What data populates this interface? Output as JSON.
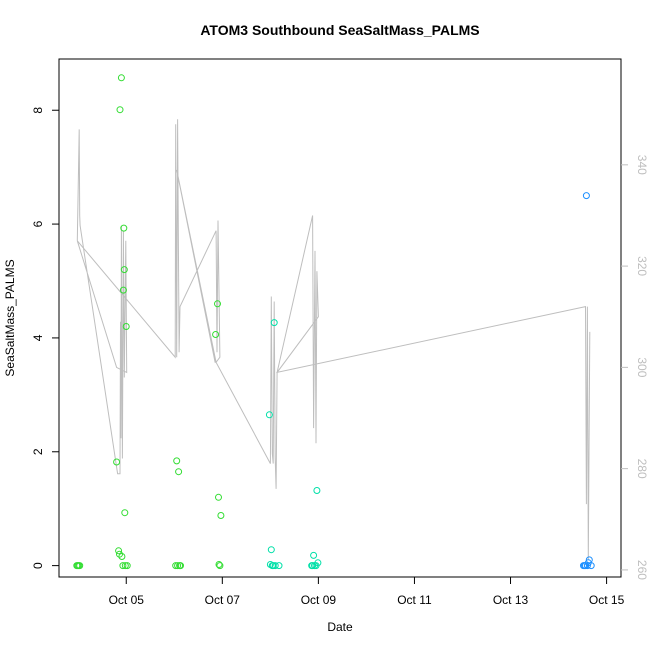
{
  "chart_data": {
    "type": "scatter",
    "title": "ATOM3 Southbound SeaSaltMass_PALMS",
    "xlabel": "Date",
    "ylabel": "SeaSaltMass_PALMS",
    "x_ticks": [
      "Oct 05",
      "Oct 07",
      "Oct 09",
      "Oct 11",
      "Oct 13",
      "Oct 15"
    ],
    "x_tick_values": [
      5,
      7,
      9,
      11,
      13,
      15
    ],
    "xlim": [
      3.6,
      15.3
    ],
    "ylim": [
      -0.2,
      8.9
    ],
    "y_ticks": [
      "0",
      "2",
      "4",
      "6",
      "8"
    ],
    "y_tick_values": [
      0,
      2,
      4,
      6,
      8
    ],
    "right_axis": {
      "ticks": [
        "260",
        "280",
        "300",
        "320",
        "340"
      ],
      "tick_values": [
        260,
        280,
        300,
        320,
        340
      ],
      "ylim": [
        258.6,
        360.9
      ],
      "color": "#bebebe"
    },
    "grid": false,
    "legend": "none",
    "colors": {
      "line": "#bebebe",
      "early": "#33dd33",
      "mid": "#00e0a8",
      "late": "#1e90ff"
    },
    "scatter_series": {
      "name": "SeaSaltMass_PALMS",
      "points": [
        [
          3.97,
          0.0
        ],
        [
          3.99,
          0.0
        ],
        [
          4.01,
          0.0
        ],
        [
          4.03,
          0.0
        ],
        [
          4.8,
          1.82
        ],
        [
          4.84,
          0.26
        ],
        [
          4.86,
          0.2
        ],
        [
          4.87,
          8.01
        ],
        [
          4.9,
          8.57
        ],
        [
          4.91,
          0.16
        ],
        [
          4.93,
          0.0
        ],
        [
          4.94,
          4.84
        ],
        [
          4.95,
          5.93
        ],
        [
          4.96,
          5.2
        ],
        [
          4.97,
          0.93
        ],
        [
          4.98,
          0.0
        ],
        [
          5.0,
          4.2
        ],
        [
          5.02,
          0.0
        ],
        [
          6.03,
          0.0
        ],
        [
          6.05,
          1.84
        ],
        [
          6.07,
          0.0
        ],
        [
          6.09,
          1.65
        ],
        [
          6.11,
          0.0
        ],
        [
          6.13,
          0.0
        ],
        [
          6.86,
          4.06
        ],
        [
          6.9,
          4.6
        ],
        [
          6.92,
          1.2
        ],
        [
          6.93,
          0.02
        ],
        [
          6.95,
          0.0
        ],
        [
          6.97,
          0.88
        ],
        [
          7.98,
          2.65
        ],
        [
          8.0,
          0.02
        ],
        [
          8.02,
          0.28
        ],
        [
          8.04,
          0.0
        ],
        [
          8.06,
          0.0
        ],
        [
          8.08,
          4.27
        ],
        [
          8.1,
          0.0
        ],
        [
          8.18,
          0.0
        ],
        [
          8.86,
          0.0
        ],
        [
          8.88,
          0.0
        ],
        [
          8.9,
          0.18
        ],
        [
          8.92,
          0.0
        ],
        [
          8.95,
          0.0
        ],
        [
          8.97,
          1.32
        ],
        [
          8.99,
          0.05
        ],
        [
          14.52,
          0.0
        ],
        [
          14.54,
          0.0
        ],
        [
          14.56,
          0.0
        ],
        [
          14.58,
          6.5
        ],
        [
          14.6,
          0.0
        ],
        [
          14.62,
          0.05
        ],
        [
          14.64,
          0.1
        ],
        [
          14.68,
          0.0
        ]
      ]
    },
    "line_series": {
      "name": "right axis series",
      "points": [
        [
          3.98,
          325
        ],
        [
          4.02,
          347
        ],
        [
          4.03,
          330
        ],
        [
          4.04,
          328
        ],
        [
          4.82,
          279
        ],
        [
          4.87,
          279
        ],
        [
          4.88,
          309
        ],
        [
          4.89,
          286
        ],
        [
          4.9,
          328
        ],
        [
          4.92,
          282
        ],
        [
          4.94,
          327
        ],
        [
          4.96,
          298
        ],
        [
          4.99,
          325
        ],
        [
          5.01,
          299
        ],
        [
          4.8,
          300
        ],
        [
          3.98,
          325
        ],
        [
          6.02,
          302
        ],
        [
          6.03,
          348
        ],
        [
          6.05,
          302
        ],
        [
          6.07,
          349
        ],
        [
          6.1,
          303
        ],
        [
          6.12,
          312
        ],
        [
          6.87,
          327
        ],
        [
          6.89,
          303
        ],
        [
          6.91,
          329
        ],
        [
          6.95,
          302
        ],
        [
          6.87,
          301
        ],
        [
          6.85,
          301
        ],
        [
          6.05,
          339
        ],
        [
          6.87,
          301
        ],
        [
          8.0,
          281
        ],
        [
          8.02,
          314
        ],
        [
          8.04,
          283
        ],
        [
          8.06,
          281
        ],
        [
          8.08,
          313
        ],
        [
          8.1,
          282
        ],
        [
          8.12,
          276
        ],
        [
          8.14,
          299
        ],
        [
          8.88,
          330
        ],
        [
          8.9,
          288
        ],
        [
          8.93,
          323
        ],
        [
          8.95,
          285
        ],
        [
          8.97,
          319
        ],
        [
          9.0,
          310
        ],
        [
          8.14,
          299
        ],
        [
          14.56,
          312
        ],
        [
          14.58,
          273
        ],
        [
          14.6,
          312
        ],
        [
          14.62,
          262
        ],
        [
          14.65,
          307
        ]
      ]
    }
  }
}
